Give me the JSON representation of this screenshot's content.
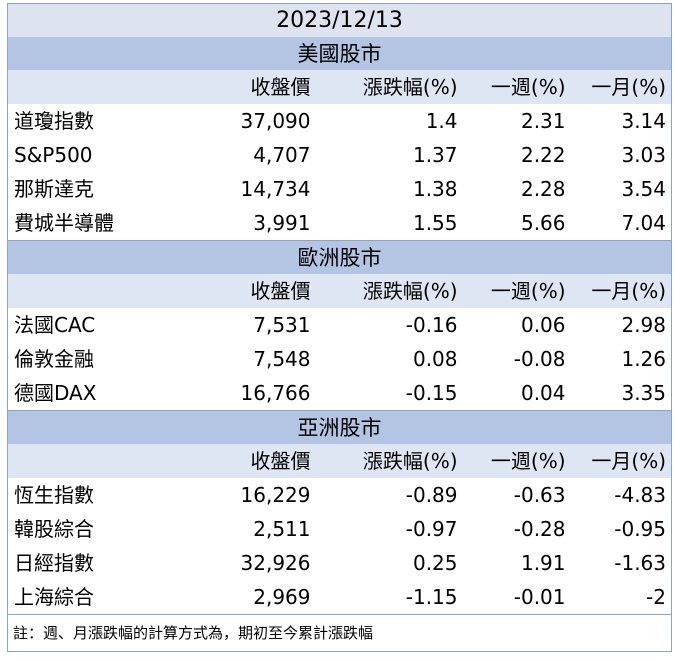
{
  "date": "2023/12/13",
  "headers": [
    "收盤價",
    "漲跌幅(%)",
    "一週(%)",
    "一月(%)"
  ],
  "sections": [
    {
      "title": "美國股市",
      "rows": [
        {
          "name": "道瓊指數",
          "close": "37,090",
          "change": "1.4",
          "week": "2.31",
          "month": "3.14"
        },
        {
          "name": "S&P500",
          "close": "4,707",
          "change": "1.37",
          "week": "2.22",
          "month": "3.03"
        },
        {
          "name": "那斯達克",
          "close": "14,734",
          "change": "1.38",
          "week": "2.28",
          "month": "3.54"
        },
        {
          "name": "費城半導體",
          "close": "3,991",
          "change": "1.55",
          "week": "5.66",
          "month": "7.04"
        }
      ]
    },
    {
      "title": "歐洲股市",
      "rows": [
        {
          "name": "法國CAC",
          "close": "7,531",
          "change": "-0.16",
          "week": "0.06",
          "month": "2.98"
        },
        {
          "name": "倫敦金融",
          "close": "7,548",
          "change": "0.08",
          "week": "-0.08",
          "month": "1.26"
        },
        {
          "name": "德國DAX",
          "close": "16,766",
          "change": "-0.15",
          "week": "0.04",
          "month": "3.35"
        }
      ]
    },
    {
      "title": "亞洲股市",
      "rows": [
        {
          "name": "恆生指數",
          "close": "16,229",
          "change": "-0.89",
          "week": "-0.63",
          "month": "-4.83"
        },
        {
          "name": "韓股綜合",
          "close": "2,511",
          "change": "-0.97",
          "week": "-0.28",
          "month": "-0.95"
        },
        {
          "name": "日經指數",
          "close": "32,926",
          "change": "0.25",
          "week": "1.91",
          "month": "-1.63"
        },
        {
          "name": "上海綜合",
          "close": "2,969",
          "change": "-1.15",
          "week": "-0.01",
          "month": "-2"
        }
      ]
    }
  ],
  "note": "註：週、月漲跌幅的計算方式為，期初至今累計漲跌幅"
}
